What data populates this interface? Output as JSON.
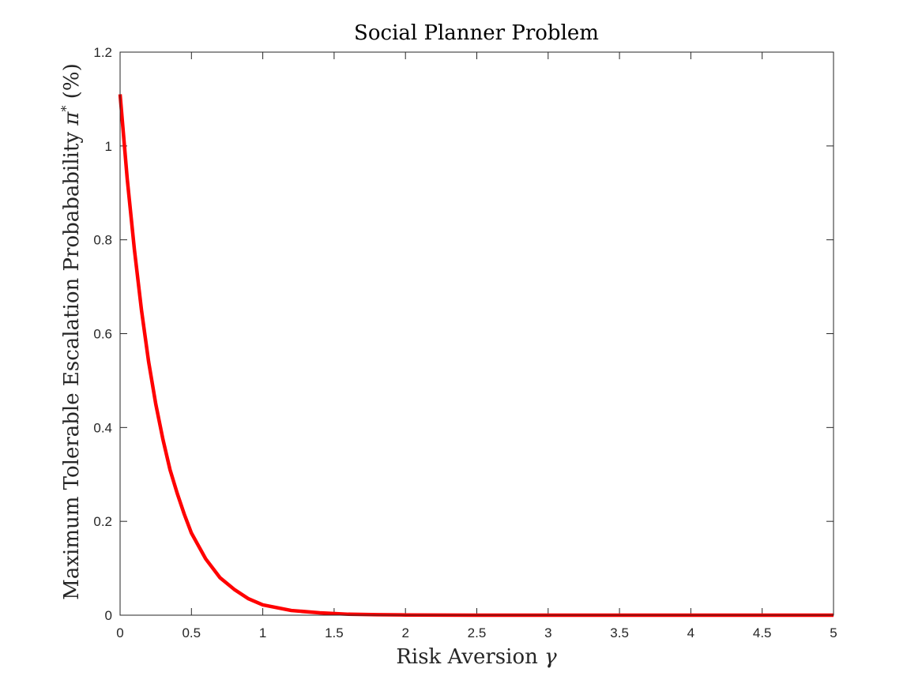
{
  "chart_data": {
    "type": "line",
    "title": "Social Planner Problem",
    "xlabel": "Risk Aversion γ",
    "xlabel_parts": {
      "text": "Risk Aversion ",
      "symbol": "γ"
    },
    "ylabel": "Maximum Tolerable Escalation Probabability π* (%)",
    "ylabel_parts": {
      "text": "Maximum Tolerable Escalation Probabability ",
      "symbol": "π",
      "superscript": "*",
      "suffix": " (%)"
    },
    "xlim": [
      0,
      5
    ],
    "ylim": [
      0,
      1.2
    ],
    "x_ticks": [
      0,
      0.5,
      1,
      1.5,
      2,
      2.5,
      3,
      3.5,
      4,
      4.5,
      5
    ],
    "x_tick_labels": [
      "0",
      "0.5",
      "1",
      "1.5",
      "2",
      "2.5",
      "3",
      "3.5",
      "4",
      "4.5",
      "5"
    ],
    "y_ticks": [
      0,
      0.2,
      0.4,
      0.6,
      0.8,
      1,
      1.2
    ],
    "y_tick_labels": [
      "0",
      "0.2",
      "0.4",
      "0.6",
      "0.8",
      "1",
      "1.2"
    ],
    "grid": false,
    "box": true,
    "line_color": "#ff0000",
    "axis_color": "#262626",
    "series": [
      {
        "x": [
          0,
          0.05,
          0.1,
          0.15,
          0.2,
          0.25,
          0.3,
          0.35,
          0.4,
          0.45,
          0.5,
          0.6,
          0.7,
          0.8,
          0.9,
          1.0,
          1.2,
          1.4,
          1.6,
          1.8,
          2.0,
          2.5,
          3.0,
          3.5,
          4.0,
          4.5,
          5.0
        ],
        "values": [
          1.11,
          0.93,
          0.78,
          0.65,
          0.54,
          0.45,
          0.375,
          0.31,
          0.26,
          0.215,
          0.175,
          0.12,
          0.08,
          0.055,
          0.035,
          0.022,
          0.01,
          0.005,
          0.002,
          0.001,
          0.0005,
          0.0001,
          0,
          0,
          0,
          0,
          0
        ]
      }
    ]
  }
}
